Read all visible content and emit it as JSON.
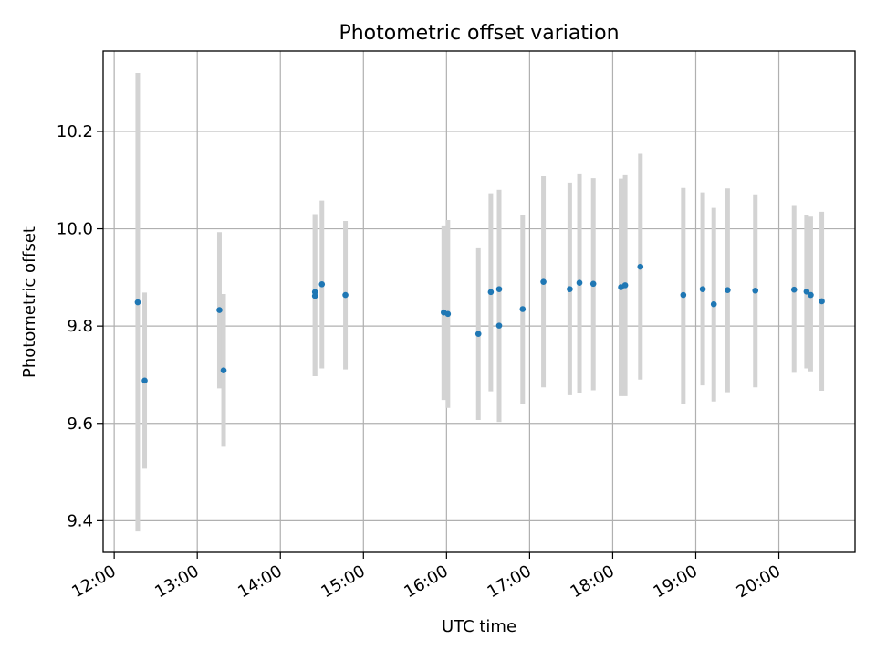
{
  "chart_data": {
    "type": "scatter",
    "title": "Photometric offset variation",
    "xlabel": "UTC time",
    "ylabel": "Photometric offset",
    "x_ticks": [
      "12:00",
      "13:00",
      "14:00",
      "15:00",
      "16:00",
      "17:00",
      "18:00",
      "19:00",
      "20:00"
    ],
    "y_ticks": [
      "9.4",
      "9.6",
      "9.8",
      "10.0",
      "10.2"
    ],
    "xlim": [
      "11:52",
      "20:55"
    ],
    "ylim": [
      9.335,
      10.365
    ],
    "grid": true,
    "point_color": "#1f77b4",
    "errorbar_color": "#d3d3d3",
    "points": [
      {
        "x": "12:17",
        "y": 9.849,
        "ylo": 9.378,
        "yhi": 10.32
      },
      {
        "x": "12:22",
        "y": 9.688,
        "ylo": 9.507,
        "yhi": 9.869
      },
      {
        "x": "13:16",
        "y": 9.833,
        "ylo": 9.672,
        "yhi": 9.993
      },
      {
        "x": "13:19",
        "y": 9.709,
        "ylo": 9.552,
        "yhi": 9.866
      },
      {
        "x": "14:25",
        "y": 9.87,
        "ylo": 9.697,
        "yhi": 10.03
      },
      {
        "x": "14:25",
        "y": 9.862,
        "ylo": 9.697,
        "yhi": 10.03
      },
      {
        "x": "14:30",
        "y": 9.886,
        "ylo": 9.713,
        "yhi": 10.058
      },
      {
        "x": "14:47",
        "y": 9.864,
        "ylo": 9.711,
        "yhi": 10.016
      },
      {
        "x": "15:58",
        "y": 9.828,
        "ylo": 9.648,
        "yhi": 10.007
      },
      {
        "x": "16:01",
        "y": 9.825,
        "ylo": 9.632,
        "yhi": 10.018
      },
      {
        "x": "16:23",
        "y": 9.784,
        "ylo": 9.607,
        "yhi": 9.96
      },
      {
        "x": "16:32",
        "y": 9.87,
        "ylo": 9.666,
        "yhi": 10.073
      },
      {
        "x": "16:38",
        "y": 9.876,
        "ylo": 9.603,
        "yhi": 10.08
      },
      {
        "x": "16:38",
        "y": 9.801,
        "ylo": 9.603,
        "yhi": 10.08
      },
      {
        "x": "16:55",
        "y": 9.835,
        "ylo": 9.639,
        "yhi": 10.029
      },
      {
        "x": "17:10",
        "y": 9.891,
        "ylo": 9.674,
        "yhi": 10.108
      },
      {
        "x": "17:29",
        "y": 9.876,
        "ylo": 9.658,
        "yhi": 10.095
      },
      {
        "x": "17:36",
        "y": 9.889,
        "ylo": 9.663,
        "yhi": 10.112
      },
      {
        "x": "17:46",
        "y": 9.887,
        "ylo": 9.668,
        "yhi": 10.104
      },
      {
        "x": "18:06",
        "y": 9.88,
        "ylo": 9.656,
        "yhi": 10.103
      },
      {
        "x": "18:09",
        "y": 9.884,
        "ylo": 9.656,
        "yhi": 10.11
      },
      {
        "x": "18:20",
        "y": 9.922,
        "ylo": 9.69,
        "yhi": 10.154
      },
      {
        "x": "18:51",
        "y": 9.864,
        "ylo": 9.64,
        "yhi": 10.084
      },
      {
        "x": "19:05",
        "y": 9.876,
        "ylo": 9.678,
        "yhi": 10.075
      },
      {
        "x": "19:13",
        "y": 9.845,
        "ylo": 9.645,
        "yhi": 10.043
      },
      {
        "x": "19:23",
        "y": 9.874,
        "ylo": 9.664,
        "yhi": 10.083
      },
      {
        "x": "19:43",
        "y": 9.873,
        "ylo": 9.674,
        "yhi": 10.069
      },
      {
        "x": "20:11",
        "y": 9.875,
        "ylo": 9.704,
        "yhi": 10.047
      },
      {
        "x": "20:20",
        "y": 9.871,
        "ylo": 9.713,
        "yhi": 10.028
      },
      {
        "x": "20:23",
        "y": 9.864,
        "ylo": 9.707,
        "yhi": 10.025
      },
      {
        "x": "20:31",
        "y": 9.851,
        "ylo": 9.667,
        "yhi": 10.035
      }
    ]
  }
}
